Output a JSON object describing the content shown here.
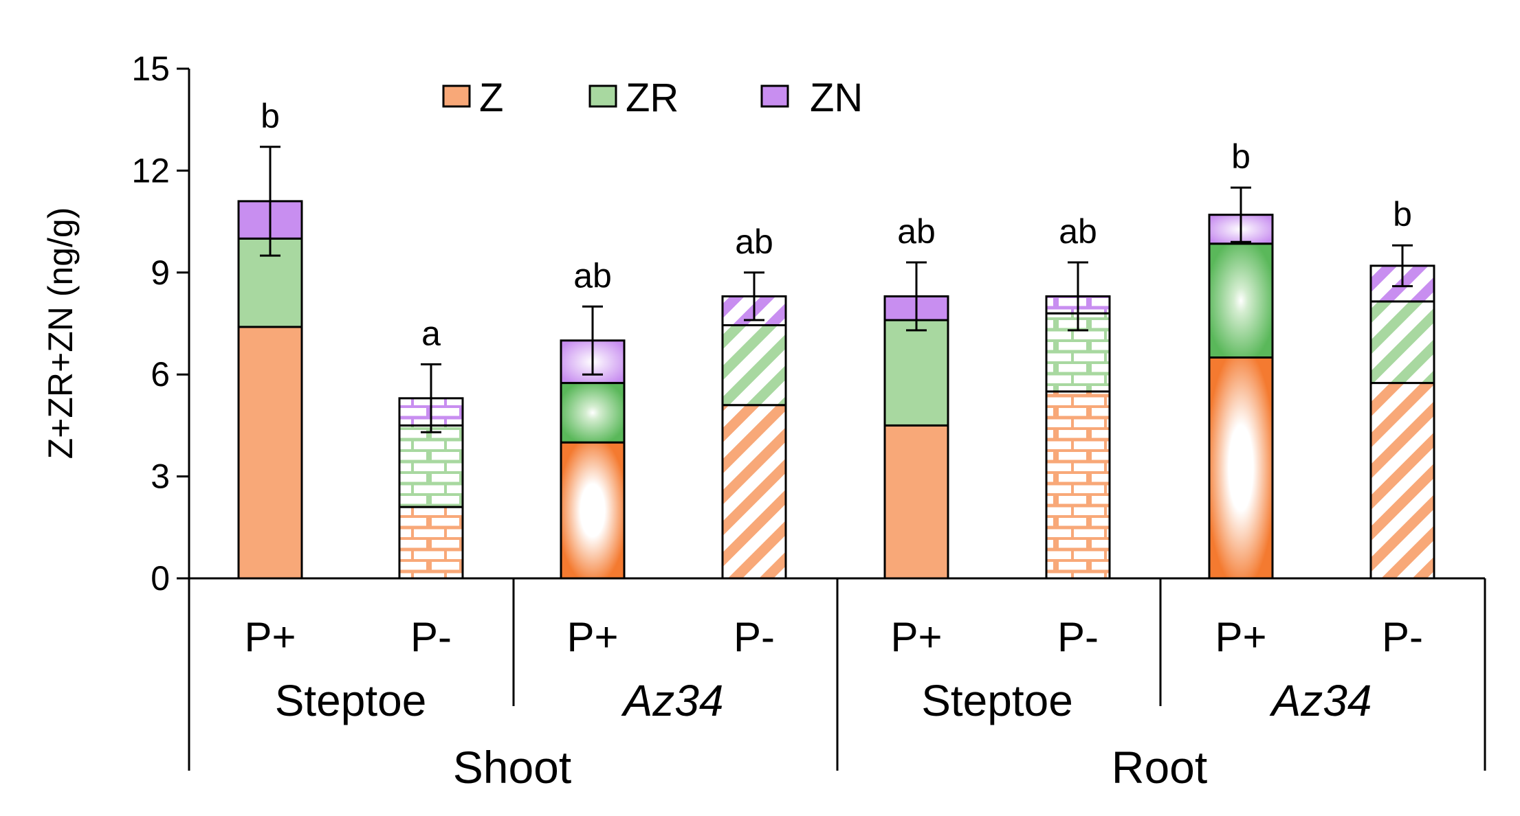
{
  "chart_data": {
    "type": "bar",
    "stacked": true,
    "ylabel": "Z+ZR+ZN (ng/g)",
    "ylim": [
      0,
      15
    ],
    "yticks": [
      0,
      3,
      6,
      9,
      12,
      15
    ],
    "grid": false,
    "legend_position": "top",
    "categories": [
      "P+",
      "P-",
      "P+",
      "P-",
      "P+",
      "P-",
      "P+",
      "P-"
    ],
    "genotypes": [
      "Steptoe",
      "Az34",
      "Steptoe",
      "Az34"
    ],
    "tissues": [
      "Shoot",
      "Root"
    ],
    "series": [
      {
        "name": "Z",
        "color": "#f8a878",
        "values": [
          7.4,
          2.1,
          4.0,
          5.1,
          4.5,
          5.5,
          6.5,
          5.75
        ]
      },
      {
        "name": "ZR",
        "color": "#a8d8a0",
        "values": [
          2.6,
          2.4,
          1.75,
          2.35,
          3.1,
          2.3,
          3.35,
          2.4
        ]
      },
      {
        "name": "ZN",
        "color": "#c88ef0",
        "values": [
          1.1,
          0.8,
          1.25,
          0.85,
          0.7,
          0.5,
          0.85,
          1.05
        ]
      }
    ],
    "patterns": [
      "solid",
      "brick",
      "gradient",
      "diagonal",
      "solid",
      "brick",
      "gradient",
      "diagonal"
    ],
    "error_bars": [
      1.6,
      1.0,
      1.0,
      0.7,
      1.0,
      1.0,
      0.8,
      0.6
    ],
    "significance": [
      "b",
      "a",
      "ab",
      "ab",
      "ab",
      "ab",
      "b",
      "b"
    ]
  }
}
